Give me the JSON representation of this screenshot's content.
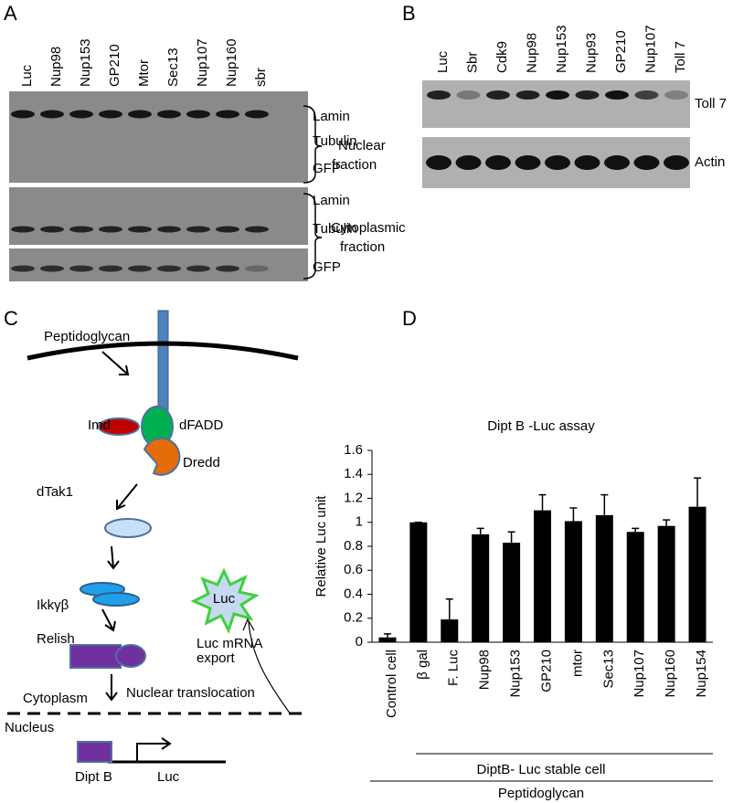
{
  "panel_labels": [
    "A",
    "B",
    "C",
    "D"
  ],
  "panel_a": {
    "lanes": [
      "Luc",
      "Nup98",
      "Nup153",
      "GP210",
      "Mtor",
      "Sec13",
      "Nup107",
      "Nup160",
      "sbr"
    ],
    "row_labels": [
      "Lamin",
      "Tubulin",
      "GFP",
      "Lamin",
      "Tubulin",
      "GFP"
    ],
    "nuclear_fraction": [
      "Nuclear",
      "fraction"
    ],
    "cytoplasmic_fraction": [
      "Cytoplasmic",
      "fraction"
    ]
  },
  "panel_b": {
    "lanes": [
      "Luc",
      "Sbr",
      "Cdk9",
      "Nup98",
      "Nup153",
      "Nup93",
      "GP210",
      "Nup107",
      "Toll 7"
    ],
    "row_labels": [
      "Toll 7",
      "Actin"
    ]
  },
  "panel_c": {
    "peptidoglycan": "Peptidoglycan",
    "imd": "Imd",
    "dfadd": "dFADD",
    "dredd": "Dredd",
    "dtak1": "dTak1",
    "ikk": "Ikkγβ",
    "luc_star": "Luc",
    "relish": "Relish",
    "export": [
      "Luc mRNA",
      "export"
    ],
    "translocation": "Nuclear translocation",
    "cytoplasm": "Cytoplasm",
    "nucleus": "Nucleus",
    "dipt_b": "Dipt B",
    "luc_gene": "Luc"
  },
  "chart_data": {
    "type": "bar",
    "title": "Dipt B -Luc assay",
    "y_label": "Relative Luc unit",
    "categories": [
      "Control cell",
      "β gal",
      "F. Luc",
      "Nup98",
      "Nup153",
      "GP210",
      "mtor",
      "Sec13",
      "Nup107",
      "Nup160",
      "Nup154"
    ],
    "values": [
      0.04,
      1.0,
      0.19,
      0.9,
      0.83,
      1.1,
      1.01,
      1.06,
      0.92,
      0.97,
      1.13
    ],
    "errors": [
      0.03,
      0,
      0.17,
      0.05,
      0.09,
      0.13,
      0.11,
      0.17,
      0.03,
      0.05,
      0.24
    ],
    "color": "#000000",
    "ylim": [
      0,
      1.6
    ],
    "yticks": [
      0,
      0.2,
      0.4,
      0.6,
      0.8,
      1,
      1.2,
      1.4,
      1.6
    ],
    "group_label": "DiptB- Luc stable cell",
    "treatment_label": "Peptidoglycan"
  }
}
